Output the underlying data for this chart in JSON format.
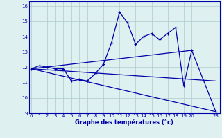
{
  "xlabel": "Graphe des températures (°c)",
  "bg_color": "#dff0f0",
  "line_color": "#0000aa",
  "grid_color": "#aacccc",
  "x_ticks": [
    0,
    1,
    2,
    3,
    4,
    5,
    6,
    7,
    8,
    9,
    10,
    11,
    12,
    13,
    14,
    15,
    16,
    17,
    18,
    19,
    20,
    23
  ],
  "xlim": [
    -0.3,
    23.5
  ],
  "ylim": [
    9,
    16.3
  ],
  "y_ticks": [
    9,
    10,
    11,
    12,
    13,
    14,
    15,
    16
  ],
  "series1_x": [
    0,
    1,
    2,
    3,
    4,
    5,
    6,
    7,
    8,
    9,
    10,
    11,
    12,
    13,
    14,
    15,
    16,
    17,
    18,
    19,
    20,
    23
  ],
  "series1_y": [
    11.9,
    12.1,
    12.0,
    11.9,
    11.9,
    11.1,
    11.2,
    11.1,
    11.6,
    12.2,
    13.6,
    15.6,
    14.9,
    13.5,
    14.0,
    14.2,
    13.8,
    14.2,
    14.6,
    10.8,
    13.1,
    9.1
  ],
  "line2_x": [
    0,
    20
  ],
  "line2_y": [
    11.9,
    13.1
  ],
  "line3_x": [
    0,
    23
  ],
  "line3_y": [
    11.9,
    9.1
  ],
  "line4_x": [
    0,
    23
  ],
  "line4_y": [
    11.9,
    11.1
  ]
}
